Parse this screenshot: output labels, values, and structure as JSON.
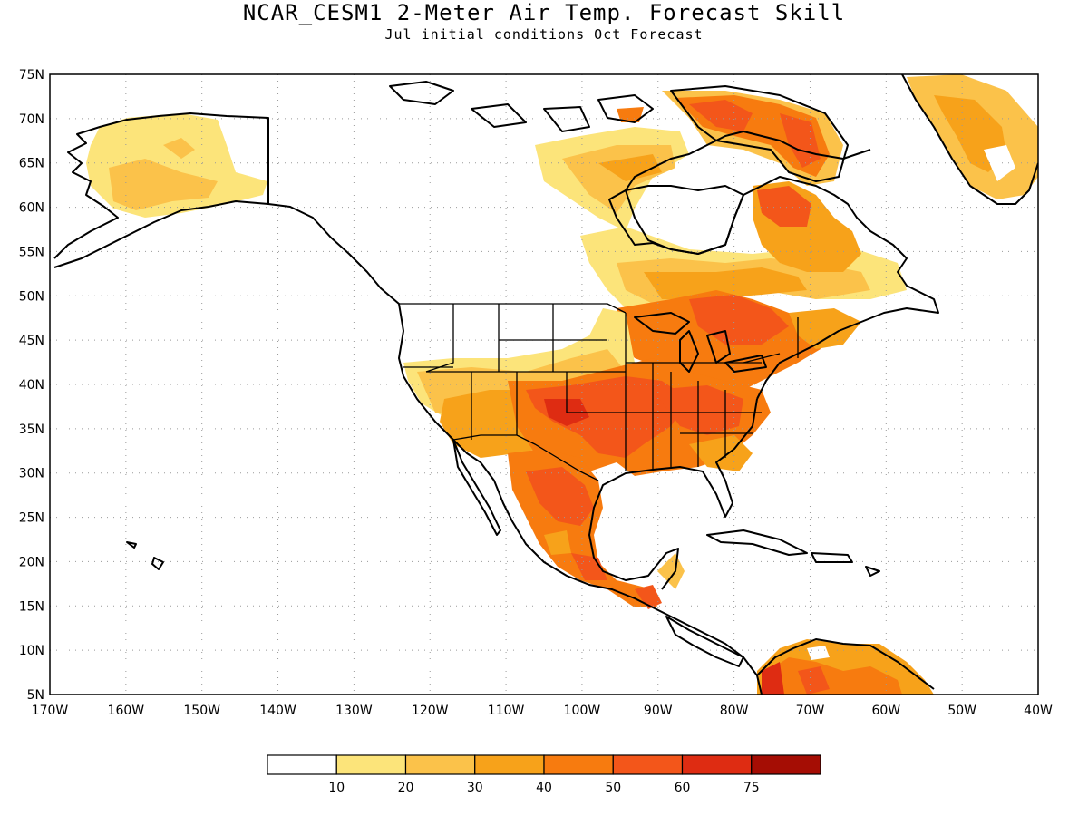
{
  "title": "NCAR_CESM1 2-Meter Air Temp. Forecast Skill",
  "subtitle": "Jul initial conditions  Oct Forecast",
  "map": {
    "lon_range": [
      -170,
      -40
    ],
    "lat_range": [
      5,
      75
    ],
    "lat_labels": [
      "5N",
      "10N",
      "15N",
      "20N",
      "25N",
      "30N",
      "35N",
      "40N",
      "45N",
      "50N",
      "55N",
      "60N",
      "65N",
      "70N",
      "75N"
    ],
    "lon_labels": [
      "170W",
      "160W",
      "150W",
      "140W",
      "130W",
      "120W",
      "110W",
      "100W",
      "90W",
      "80W",
      "70W",
      "60W",
      "50W",
      "40W"
    ],
    "grid": "dotted"
  },
  "colorbar": {
    "labels": [
      "10",
      "20",
      "30",
      "40",
      "50",
      "60",
      "75"
    ],
    "colors": [
      "#ffffff",
      "#fce47a",
      "#fbc24a",
      "#f7a21a",
      "#f77b0f",
      "#f3561a",
      "#de2c12",
      "#a50d04"
    ]
  }
}
